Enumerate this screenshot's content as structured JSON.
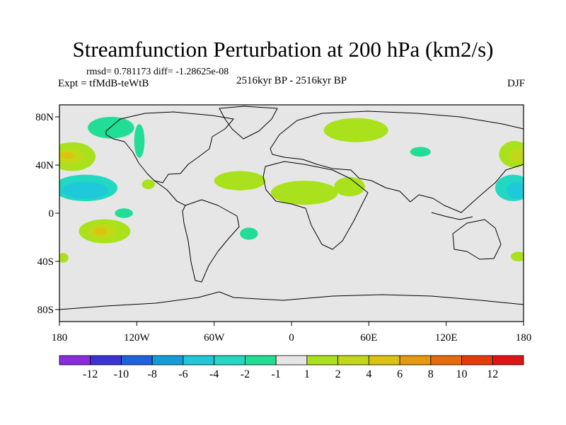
{
  "header": {
    "title": "Streamfunction Perturbation at 200 hPa (km2/s)",
    "stats": "rmsd= 0.781173 diff= -1.28625e-08",
    "experiment": "Expt = tfMdB-teWtB",
    "period": "2516kyr BP - 2516kyr BP",
    "season": "DJF"
  },
  "chart_data": {
    "type": "heatmap",
    "title": "Streamfunction Perturbation at 200 hPa (km2/s)",
    "xlabel": "",
    "ylabel": "",
    "xlim": [
      -180,
      180
    ],
    "ylim": [
      -90,
      90
    ],
    "x_ticks": [
      {
        "value": -180,
        "label": "180"
      },
      {
        "value": -120,
        "label": "120W"
      },
      {
        "value": -60,
        "label": "60W"
      },
      {
        "value": 0,
        "label": "0"
      },
      {
        "value": 60,
        "label": "60E"
      },
      {
        "value": 120,
        "label": "120E"
      },
      {
        "value": 180,
        "label": "180"
      }
    ],
    "y_ticks": [
      {
        "value": 80,
        "label": "80N"
      },
      {
        "value": 40,
        "label": "40N"
      },
      {
        "value": 0,
        "label": "0"
      },
      {
        "value": -40,
        "label": "40S"
      },
      {
        "value": -80,
        "label": "80S"
      }
    ],
    "colorbar": {
      "colors": [
        "#8a2be2",
        "#3a32d8",
        "#1f62e0",
        "#119ed8",
        "#1ec9d9",
        "#22d8c2",
        "#21dd96",
        "#e6e6e6",
        "#a9e21c",
        "#c2d817",
        "#dcc30f",
        "#e69a0b",
        "#e86a0a",
        "#e63a0a",
        "#e01414"
      ],
      "labels": [
        "-12",
        "-10",
        "-8",
        "-6",
        "-4",
        "-2",
        "-1",
        "1",
        "2",
        "4",
        "6",
        "8",
        "10",
        "12"
      ]
    },
    "anomalies": [
      {
        "region": "north-pacific-west",
        "lon": -170,
        "lat": 47,
        "rlon": 18,
        "rlat": 12,
        "value": 1.5
      },
      {
        "region": "north-pacific-west-core",
        "lon": -172,
        "lat": 47,
        "rlon": 11,
        "rlat": 6,
        "value": 3
      },
      {
        "region": "north-pacific-west-inner",
        "lon": -174,
        "lat": 48,
        "rlon": 5,
        "rlat": 3,
        "value": 5
      },
      {
        "region": "alaska-canada",
        "lon": -140,
        "lat": 71,
        "rlon": 18,
        "rlat": 9,
        "value": -1.5
      },
      {
        "region": "west-coast-strip",
        "lon": -118,
        "lat": 60,
        "rlon": 4,
        "rlat": 14,
        "value": -1.5
      },
      {
        "region": "subtropical-pacific-east",
        "lon": -160,
        "lat": 21,
        "rlon": 25,
        "rlat": 11,
        "value": -2
      },
      {
        "region": "subtropical-pacific-east-core",
        "lon": -160,
        "lat": 19,
        "rlon": 18,
        "rlat": 7,
        "value": -4
      },
      {
        "region": "mexico-gulf",
        "lon": -111,
        "lat": 24,
        "rlon": 5,
        "rlat": 4,
        "value": 1.5
      },
      {
        "region": "equatorial-pacific",
        "lon": -130,
        "lat": 0,
        "rlon": 7,
        "rlat": 4,
        "value": -1.5
      },
      {
        "region": "south-pacific",
        "lon": -145,
        "lat": -15,
        "rlon": 20,
        "rlat": 10,
        "value": 1.5
      },
      {
        "region": "south-pacific-core",
        "lon": -147,
        "lat": -15,
        "rlon": 11,
        "rlat": 6,
        "value": 3
      },
      {
        "region": "south-pacific-inner",
        "lon": -148,
        "lat": -15,
        "rlon": 5,
        "rlat": 3,
        "value": 5
      },
      {
        "region": "atlantic-band",
        "lon": -40,
        "lat": 27,
        "rlon": 20,
        "rlat": 8,
        "value": 1.5
      },
      {
        "region": "africa-band",
        "lon": 10,
        "lat": 17,
        "rlon": 26,
        "rlat": 10,
        "value": 1.5
      },
      {
        "region": "arabia-band",
        "lon": 45,
        "lat": 22,
        "rlon": 12,
        "rlat": 8,
        "value": 1.5
      },
      {
        "region": "south-atlantic",
        "lon": -33,
        "lat": -17,
        "rlon": 7,
        "rlat": 5,
        "value": -1.5
      },
      {
        "region": "russia",
        "lon": 50,
        "lat": 69,
        "rlon": 25,
        "rlat": 10,
        "value": 1.5
      },
      {
        "region": "central-asia",
        "lon": 100,
        "lat": 51,
        "rlon": 8,
        "rlat": 4,
        "value": -1.5
      },
      {
        "region": "north-pacific-east",
        "lon": 173,
        "lat": 49,
        "rlon": 12,
        "rlat": 11,
        "value": 1.5
      },
      {
        "region": "north-pacific-east-core",
        "lon": 176,
        "lat": 48,
        "rlon": 6,
        "rlat": 6,
        "value": 3
      },
      {
        "region": "subtropical-pacific-west",
        "lon": 172,
        "lat": 21,
        "rlon": 14,
        "rlat": 11,
        "value": -2
      },
      {
        "region": "subtropical-pacific-west-core",
        "lon": 175,
        "lat": 19,
        "rlon": 8,
        "rlat": 7,
        "value": -4
      },
      {
        "region": "new-zealand",
        "lon": 176,
        "lat": -36,
        "rlon": 6,
        "rlat": 4,
        "value": 1.5
      },
      {
        "region": "dateline-sw",
        "lon": -177,
        "lat": -37,
        "rlon": 4,
        "rlat": 4,
        "value": 1.5
      }
    ]
  }
}
